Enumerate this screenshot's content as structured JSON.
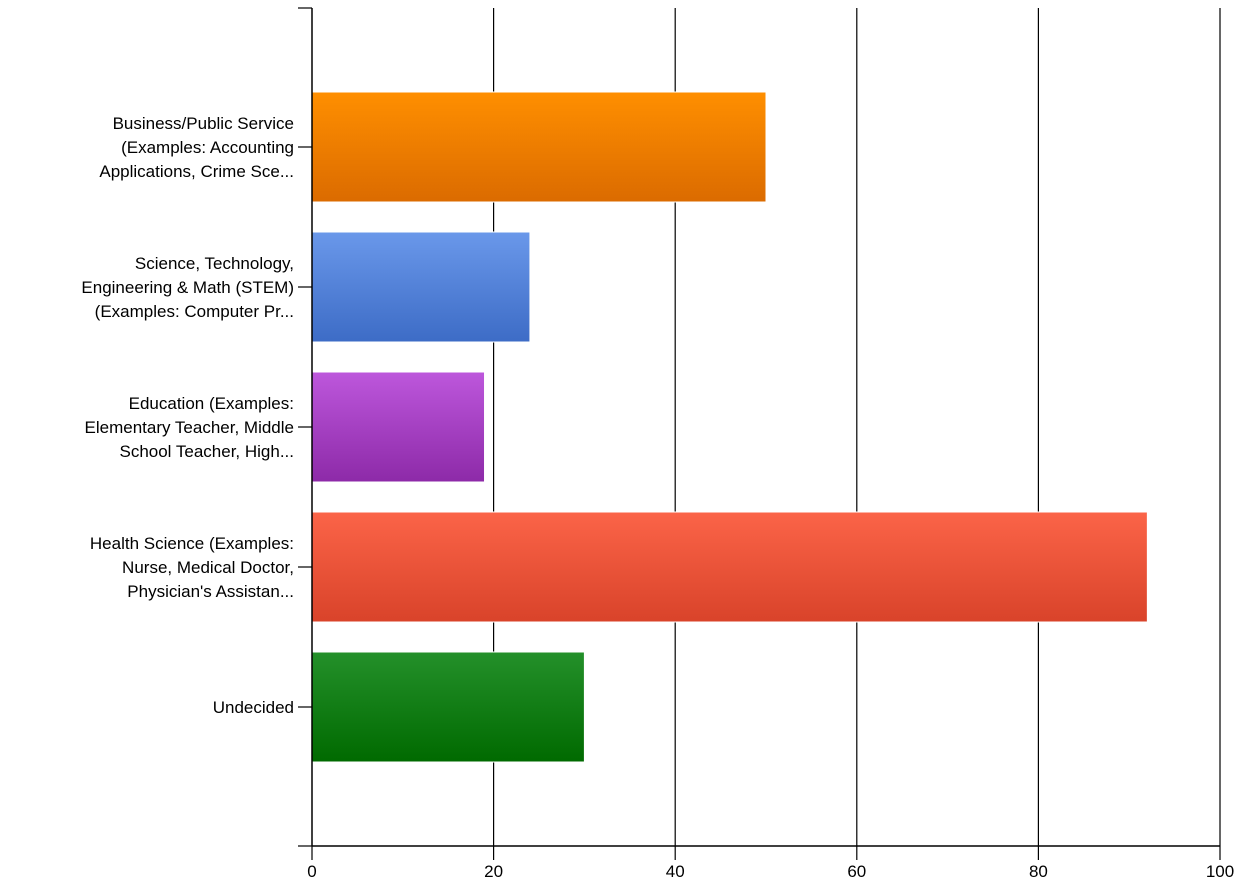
{
  "chart_data": {
    "type": "bar",
    "orientation": "horizontal",
    "title": "",
    "xlabel": "",
    "ylabel": "",
    "xlim": [
      0,
      100
    ],
    "x_ticks": [
      0,
      20,
      40,
      60,
      80,
      100
    ],
    "grid": "vertical",
    "legend": "none",
    "categories": [
      {
        "lines": [
          "Business/Public Service",
          "(Examples: Accounting",
          "Applications, Crime Sce..."
        ],
        "value": 50,
        "color_top": "#ff8f00",
        "color_bottom": "#db6b00"
      },
      {
        "lines": [
          "Science, Technology,",
          "Engineering & Math (STEM)",
          "(Examples: Computer Pr..."
        ],
        "value": 24,
        "color_top": "#6a98ea",
        "color_bottom": "#3d6cc6"
      },
      {
        "lines": [
          "Education (Examples:",
          "Elementary Teacher, Middle",
          "School Teacher, High..."
        ],
        "value": 19,
        "color_top": "#bd57dc",
        "color_bottom": "#8d2aa8"
      },
      {
        "lines": [
          "Health Science (Examples:",
          "Nurse, Medical Doctor,",
          "Physician's Assistan..."
        ],
        "value": 92,
        "color_top": "#fb6448",
        "color_bottom": "#d9432a"
      },
      {
        "lines": [
          "Undecided"
        ],
        "value": 30,
        "color_top": "#24902a",
        "color_bottom": "#006a00"
      }
    ]
  }
}
